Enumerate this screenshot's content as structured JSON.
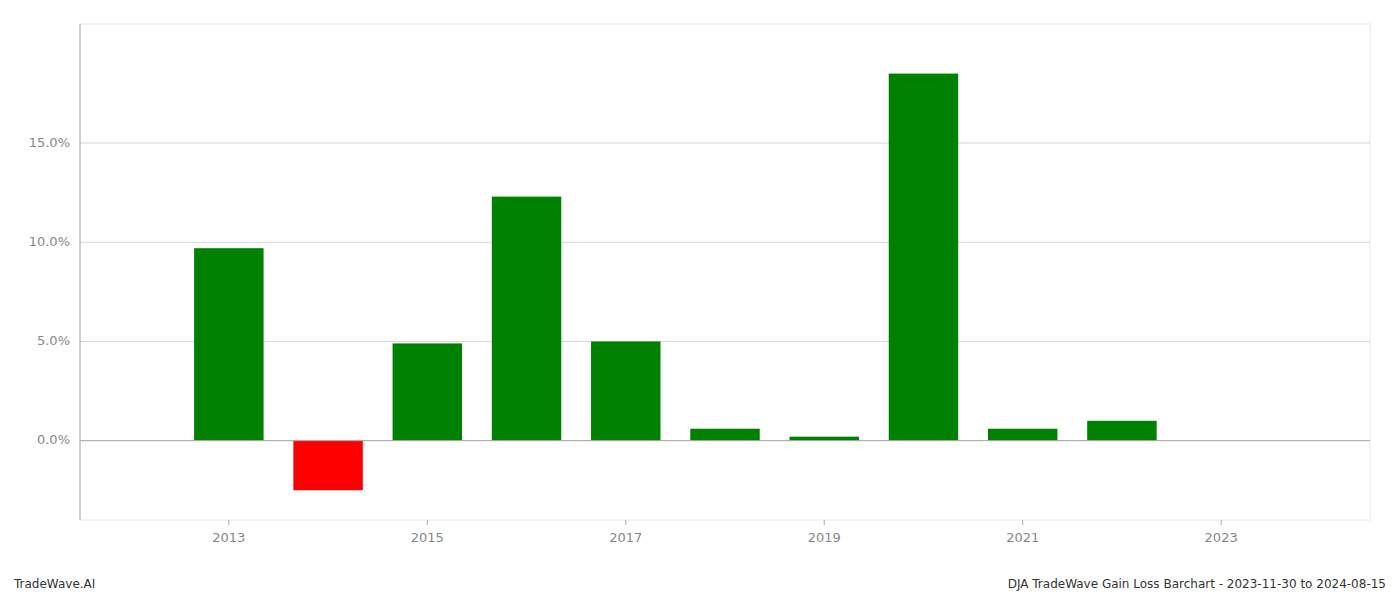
{
  "chart_data": {
    "type": "bar",
    "x": [
      2013,
      2014,
      2015,
      2016,
      2017,
      2018,
      2019,
      2020,
      2021,
      2022
    ],
    "values": [
      0.097,
      -0.025,
      0.049,
      0.123,
      0.05,
      0.006,
      0.002,
      0.185,
      0.006,
      0.01
    ],
    "colors": [
      "#008000",
      "#ff0000",
      "#008000",
      "#008000",
      "#008000",
      "#008000",
      "#008000",
      "#008000",
      "#008000",
      "#008000"
    ],
    "xlim": [
      2011.5,
      2024.5
    ],
    "xticks": [
      2013,
      2015,
      2017,
      2019,
      2021,
      2023
    ],
    "ylim": [
      -0.04,
      0.21
    ],
    "yticks": [
      {
        "value": 0.0,
        "label": "0.0%"
      },
      {
        "value": 0.05,
        "label": "5.0%"
      },
      {
        "value": 0.1,
        "label": "10.0%"
      },
      {
        "value": 0.15,
        "label": "15.0%"
      }
    ],
    "grid": true,
    "annotations": [
      "TradeWave.AI",
      "DJA TradeWave Gain Loss Barchart - 2023-11-30 to 2024-08-15"
    ]
  }
}
